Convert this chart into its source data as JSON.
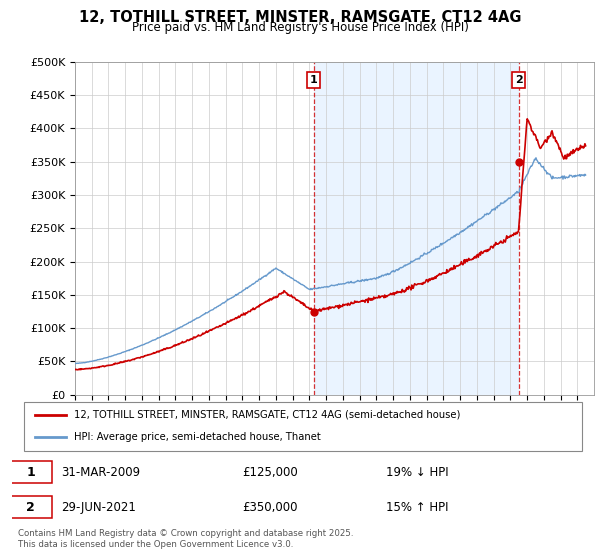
{
  "title": "12, TOTHILL STREET, MINSTER, RAMSGATE, CT12 4AG",
  "subtitle": "Price paid vs. HM Land Registry's House Price Index (HPI)",
  "ylabel_ticks": [
    "£0",
    "£50K",
    "£100K",
    "£150K",
    "£200K",
    "£250K",
    "£300K",
    "£350K",
    "£400K",
    "£450K",
    "£500K"
  ],
  "ytick_values": [
    0,
    50000,
    100000,
    150000,
    200000,
    250000,
    300000,
    350000,
    400000,
    450000,
    500000
  ],
  "price_paid_color": "#cc0000",
  "hpi_color": "#6699cc",
  "hpi_fill_color": "#ddeeff",
  "sale1_xval": 2009.25,
  "sale1_price": 125000,
  "sale1_label": "1",
  "sale1_date": "31-MAR-2009",
  "sale1_pct": "19% ↓ HPI",
  "sale2_xval": 2021.5,
  "sale2_price": 350000,
  "sale2_label": "2",
  "sale2_date": "29-JUN-2021",
  "sale2_pct": "15% ↑ HPI",
  "legend_label1": "12, TOTHILL STREET, MINSTER, RAMSGATE, CT12 4AG (semi-detached house)",
  "legend_label2": "HPI: Average price, semi-detached house, Thanet",
  "footer": "Contains HM Land Registry data © Crown copyright and database right 2025.\nThis data is licensed under the Open Government Licence v3.0.",
  "xmin": 1995,
  "xmax": 2026,
  "ymin": 0,
  "ymax": 500000
}
